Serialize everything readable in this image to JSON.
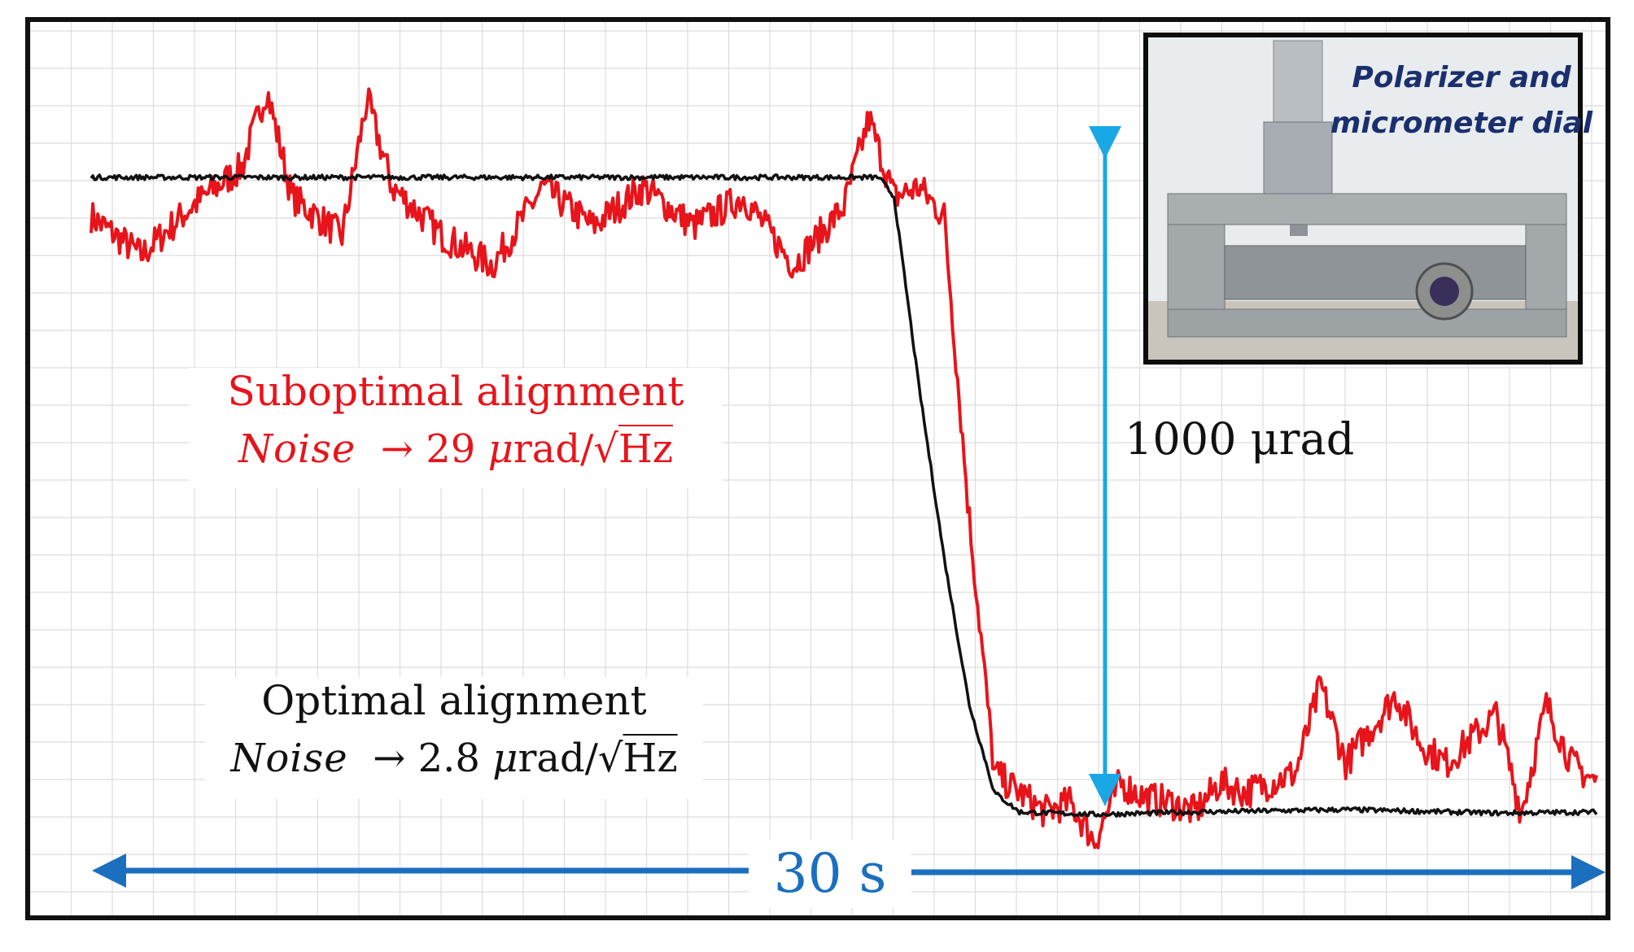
{
  "chart_data": {
    "type": "line",
    "title": "",
    "xlabel": "",
    "ylabel": "",
    "x_range_s": [
      0,
      30
    ],
    "y_range_urad": [
      -1400,
      200
    ],
    "grid": true,
    "series": [
      {
        "name": "",
        "color": "#e8141b",
        "t_s": [
          0,
          1,
          2,
          3,
          3.5,
          4,
          5,
          5.5,
          6,
          7,
          8,
          9,
          10,
          11,
          12,
          13,
          14,
          15,
          15.5,
          16,
          16.5,
          17,
          17.5,
          18,
          18.5,
          19,
          19.5,
          20,
          20.5,
          21,
          21.5,
          22,
          22.5,
          23,
          24,
          24.5,
          25,
          26,
          26.5,
          27,
          28,
          28.5,
          29,
          29.5,
          30
        ],
        "y_urad": [
          -80,
          -160,
          -60,
          20,
          180,
          -40,
          -120,
          160,
          -20,
          -120,
          -180,
          -20,
          -100,
          -20,
          -100,
          -40,
          -180,
          -60,
          120,
          -40,
          -20,
          -80,
          -700,
          -1220,
          -1260,
          -1300,
          -1280,
          -1360,
          -1240,
          -1270,
          -1280,
          -1300,
          -1240,
          -1260,
          -1220,
          -1040,
          -1200,
          -1060,
          -1160,
          -1200,
          -1100,
          -1300,
          -1080,
          -1200,
          -1240
        ]
      },
      {
        "name": "",
        "color": "#111111",
        "t_s": [
          0,
          5,
          10,
          15,
          15.7,
          16.0,
          16.5,
          17.0,
          17.5,
          18.0,
          18.5,
          20,
          22,
          25,
          28,
          30
        ],
        "y_urad": [
          0,
          0,
          0,
          0,
          0,
          -40,
          -430,
          -780,
          -1080,
          -1260,
          -1300,
          -1305,
          -1300,
          -1295,
          -1302,
          -1300
        ]
      }
    ],
    "annotations": {
      "suboptimal_title": "Suboptimal alignment",
      "suboptimal_noise_word": "Noise",
      "suboptimal_noise_value": "29",
      "optimal_title": "Optimal alignment",
      "optimal_noise_word": "Noise",
      "optimal_noise_value": "2.8",
      "arrow_symbol": "→",
      "mu_symbol": "μ",
      "rad_unit": "rad/",
      "sqrt_symbol": "√",
      "hz_unit": "Hz",
      "step_size_label": "1000 μrad",
      "step_size_urad": 1000,
      "time_span_label": "30 s",
      "time_span_s": 30
    },
    "inset": {
      "caption": "Polarizer and\nmicrometer dial"
    },
    "colors": {
      "frame": "#111111",
      "grid": "#dcdcdc",
      "step_arrow": "#1aa7e6",
      "time_arrow": "#1b6fbf"
    }
  }
}
